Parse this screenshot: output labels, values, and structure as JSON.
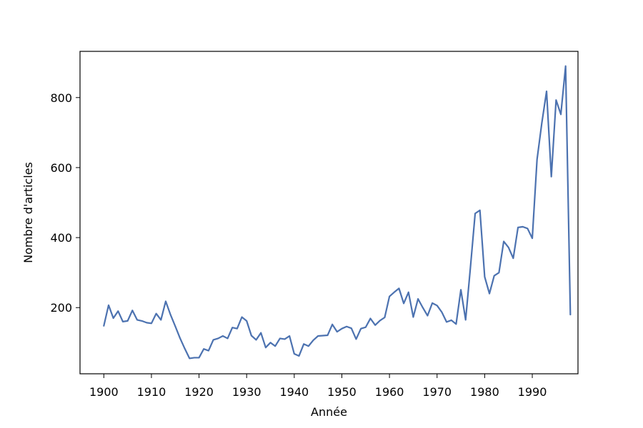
{
  "chart_data": {
    "type": "line",
    "title": "",
    "xlabel": "Année",
    "ylabel": "Nombre d'articles",
    "xlim": [
      1895,
      1999.6
    ],
    "ylim": [
      11,
      932
    ],
    "xticks": [
      1900,
      1910,
      1920,
      1930,
      1940,
      1950,
      1960,
      1970,
      1980,
      1990
    ],
    "yticks": [
      200,
      400,
      600,
      800
    ],
    "grid": false,
    "legend": "none",
    "line_color": "#4c72b0",
    "series": [
      {
        "x": [
          1900,
          1901,
          1902,
          1903,
          1904,
          1905,
          1906,
          1907,
          1908,
          1909,
          1910,
          1911,
          1912,
          1913,
          1914,
          1915,
          1916,
          1917,
          1918,
          1919,
          1920,
          1921,
          1922,
          1923,
          1924,
          1925,
          1926,
          1927,
          1928,
          1929,
          1930,
          1931,
          1932,
          1933,
          1934,
          1935,
          1936,
          1937,
          1938,
          1939,
          1940,
          1941,
          1942,
          1943,
          1944,
          1945,
          1946,
          1947,
          1948,
          1949,
          1950,
          1951,
          1952,
          1953,
          1954,
          1955,
          1956,
          1957,
          1958,
          1959,
          1960,
          1961,
          1962,
          1963,
          1964,
          1965,
          1966,
          1967,
          1968,
          1969,
          1970,
          1971,
          1972,
          1973,
          1974,
          1975,
          1976,
          1977,
          1978,
          1979,
          1980,
          1981,
          1982,
          1983,
          1984,
          1985,
          1986,
          1987,
          1988,
          1989,
          1990,
          1991,
          1992,
          1993,
          1994,
          1995,
          1996,
          1997,
          1998
        ],
        "values": [
          148,
          207,
          170,
          190,
          160,
          162,
          192,
          165,
          162,
          157,
          155,
          183,
          165,
          218,
          180,
          147,
          113,
          83,
          55,
          57,
          57,
          82,
          77,
          108,
          112,
          119,
          112,
          143,
          140,
          173,
          162,
          120,
          108,
          128,
          86,
          100,
          90,
          112,
          110,
          119,
          68,
          62,
          96,
          90,
          107,
          119,
          120,
          121,
          152,
          131,
          140,
          146,
          141,
          110,
          140,
          144,
          169,
          150,
          163,
          172,
          232,
          244,
          255,
          212,
          244,
          173,
          225,
          200,
          177,
          213,
          206,
          187,
          159,
          164,
          153,
          251,
          165,
          314,
          469,
          478,
          288,
          240,
          291,
          300,
          389,
          372,
          341,
          429,
          431,
          426,
          398,
          623,
          727,
          818,
          574,
          793,
          752,
          890,
          180
        ]
      }
    ]
  }
}
